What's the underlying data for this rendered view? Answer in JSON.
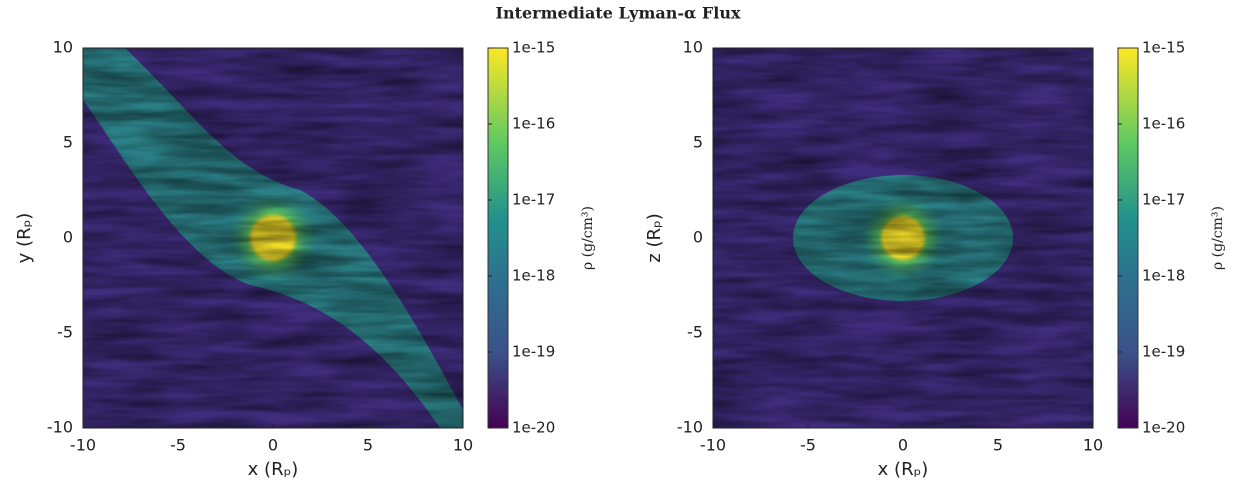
{
  "title": "Intermediate Lyman-α Flux",
  "chart_data": [
    {
      "type": "heatmap",
      "xlabel": "x (Rₚ)",
      "ylabel": "y (Rₚ)",
      "xlim": [
        -10,
        10
      ],
      "ylim": [
        -10,
        10
      ],
      "xticks": [
        -10,
        -5,
        0,
        5,
        10
      ],
      "yticks": [
        -10,
        -5,
        0,
        5,
        10
      ],
      "colorbar": {
        "label": "ρ (g/cm³)",
        "log": true,
        "lim": [
          1e-20,
          1e-15
        ],
        "ticks": [
          1e-20,
          1e-19,
          1e-18,
          1e-17,
          1e-16,
          1e-15
        ]
      }
    },
    {
      "type": "heatmap",
      "xlabel": "x (Rₚ)",
      "ylabel": "z (Rₚ)",
      "xlim": [
        -10,
        10
      ],
      "ylim": [
        -10,
        10
      ],
      "xticks": [
        -10,
        -5,
        0,
        5,
        10
      ],
      "yticks": [
        -10,
        -5,
        0,
        5,
        10
      ],
      "colorbar": {
        "label": "ρ (g/cm³)",
        "log": true,
        "lim": [
          1e-20,
          1e-15
        ],
        "ticks": [
          1e-20,
          1e-19,
          1e-18,
          1e-17,
          1e-16,
          1e-15
        ]
      }
    }
  ]
}
